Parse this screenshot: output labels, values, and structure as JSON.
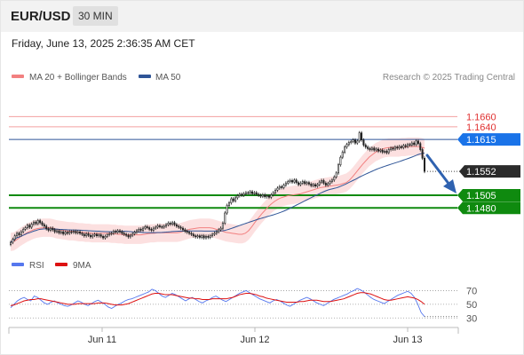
{
  "header": {
    "symbol": "EUR/USD",
    "timeframe": "30 MIN",
    "datetime": "Friday, June 13, 2025 2:36:35 AM CET"
  },
  "legend": {
    "ma20": "MA 20 + Bollinger Bands",
    "ma50": "MA 50",
    "rsi": "RSI",
    "rsi_ma": "9MA",
    "source": "Research © 2025 Trading Central"
  },
  "colors": {
    "ma20": "#f28080",
    "ma50": "#2f5597",
    "bands": "#fbdada",
    "resistance": "#f3a0a0",
    "pivot": "#2f5597",
    "support": "#0f8a0f",
    "current": "#2b2b2b",
    "pivot_label": "#1a73e8",
    "rsi": "#5577ee",
    "rsi_ma": "#dd1111",
    "arrow": "#2f62b0"
  },
  "chart_data": {
    "type": "candlestick",
    "x_ticks": [
      "Jun 11",
      "Jun 12",
      "Jun 13"
    ],
    "ylim": [
      1.14,
      1.1715
    ],
    "levels": {
      "resistance": [
        "1.1660",
        "1.1640"
      ],
      "pivot": "1.1615",
      "current": "1.1552",
      "support": [
        "1.1505",
        "1.1480"
      ]
    },
    "closes": [
      1.1412,
      1.1418,
      1.1425,
      1.143,
      1.1427,
      1.1433,
      1.1438,
      1.1441,
      1.1446,
      1.1442,
      1.1448,
      1.1452,
      1.1449,
      1.1455,
      1.1451,
      1.1447,
      1.1444,
      1.1439,
      1.1436,
      1.144,
      1.1437,
      1.1433,
      1.1435,
      1.1431,
      1.1433,
      1.1429,
      1.1432,
      1.143,
      1.1433,
      1.1432,
      1.1434,
      1.1431,
      1.1433,
      1.143,
      1.1428,
      1.1425,
      1.1429,
      1.1426,
      1.1423,
      1.1426,
      1.1428,
      1.1425,
      1.1427,
      1.1424,
      1.1421,
      1.1424,
      1.1427,
      1.1429,
      1.143,
      1.1434,
      1.1432,
      1.1435,
      1.1433,
      1.143,
      1.1428,
      1.1426,
      1.1423,
      1.1426,
      1.1429,
      1.1432,
      1.1435,
      1.1438,
      1.1436,
      1.144,
      1.1443,
      1.1441,
      1.1438,
      1.1436,
      1.144,
      1.1442,
      1.1445,
      1.1443,
      1.1442,
      1.1444,
      1.1447,
      1.145,
      1.1448,
      1.1451,
      1.1447,
      1.1444,
      1.1442,
      1.144,
      1.1437,
      1.1434,
      1.1432,
      1.143,
      1.1428,
      1.1425,
      1.1423,
      1.1425,
      1.1422,
      1.1425,
      1.1421,
      1.1424,
      1.1422,
      1.1425,
      1.1428,
      1.143,
      1.1433,
      1.1437,
      1.144,
      1.145,
      1.147,
      1.1485,
      1.149,
      1.1498,
      1.1494,
      1.15,
      1.1504,
      1.1507,
      1.1505,
      1.1508,
      1.151,
      1.1509,
      1.1512,
      1.1508,
      1.151,
      1.1507,
      1.1505,
      1.1503,
      1.1506,
      1.1502,
      1.1504,
      1.1501,
      1.1506,
      1.151,
      1.1515,
      1.1519,
      1.1522,
      1.152,
      1.1525,
      1.1529,
      1.1532,
      1.1534,
      1.1531,
      1.1535,
      1.153,
      1.1526,
      1.1529,
      1.1532,
      1.1528,
      1.153,
      1.1527,
      1.1524,
      1.1526,
      1.1523,
      1.1526,
      1.1531,
      1.1534,
      1.1529,
      1.1525,
      1.1528,
      1.1532,
      1.1535,
      1.1541,
      1.1549,
      1.1565,
      1.158,
      1.159,
      1.16,
      1.1605,
      1.1609,
      1.1611,
      1.1614,
      1.1608,
      1.1612,
      1.1628,
      1.1614,
      1.1604,
      1.16,
      1.1597,
      1.1595,
      1.1598,
      1.1594,
      1.1596,
      1.1592,
      1.1594,
      1.159,
      1.1592,
      1.1589,
      1.1595,
      1.1598,
      1.1596,
      1.16,
      1.1598,
      1.1601,
      1.1599,
      1.1603,
      1.1601,
      1.1605,
      1.1604,
      1.1608,
      1.1605,
      1.1612,
      1.1607,
      1.1595,
      1.1578,
      1.1552
    ],
    "ma20": [
      1.1413,
      1.1414,
      1.1418,
      1.1423,
      1.1427,
      1.1431,
      1.1434,
      1.1437,
      1.1439,
      1.144,
      1.1441,
      1.1441,
      1.1441,
      1.144,
      1.1438,
      1.1437,
      1.1436,
      1.1435,
      1.1434,
      1.1434,
      1.1433,
      1.1432,
      1.1432,
      1.1431,
      1.1431,
      1.143,
      1.143,
      1.143,
      1.143,
      1.143,
      1.143,
      1.1429,
      1.1429,
      1.1428,
      1.1428,
      1.1427,
      1.1427,
      1.1427,
      1.1427,
      1.1427,
      1.1427,
      1.1428,
      1.1429,
      1.143,
      1.143,
      1.1431,
      1.1431,
      1.1431,
      1.1431,
      1.1431,
      1.1431,
      1.1431,
      1.1432,
      1.1434,
      1.1436,
      1.1438,
      1.1439,
      1.144,
      1.1441,
      1.1441,
      1.1441,
      1.1441,
      1.144,
      1.1438,
      1.1436,
      1.1434,
      1.1432,
      1.1431,
      1.143,
      1.1429,
      1.1428,
      1.1428,
      1.143,
      1.1435,
      1.1443,
      1.1452,
      1.146,
      1.1468,
      1.1475,
      1.1482,
      1.1488,
      1.1493,
      1.1497,
      1.15,
      1.1502,
      1.1504,
      1.1505,
      1.1506,
      1.1507,
      1.1508,
      1.151,
      1.1512,
      1.1514,
      1.1516,
      1.1518,
      1.152,
      1.1521,
      1.1522,
      1.1523,
      1.1524,
      1.1525,
      1.1526,
      1.1528,
      1.153,
      1.1535,
      1.1542,
      1.155,
      1.1558,
      1.1566,
      1.1573,
      1.158,
      1.1585,
      1.159,
      1.1593,
      1.1596,
      1.1598,
      1.1599,
      1.1599,
      1.1599,
      1.1599,
      1.16,
      1.16,
      1.1601,
      1.1601,
      1.1601,
      1.1601,
      1.16,
      1.1598
    ]
  },
  "rsi_data": {
    "ticks": [
      "70",
      "50",
      "30"
    ],
    "rsi": [
      45,
      50,
      55,
      58,
      60,
      57,
      55,
      62,
      60,
      56,
      52,
      50,
      53,
      55,
      52,
      50,
      48,
      47,
      49,
      52,
      55,
      53,
      50,
      48,
      51,
      54,
      56,
      53,
      50,
      46,
      44,
      47,
      50,
      52,
      55,
      57,
      58,
      60,
      62,
      64,
      66,
      68,
      72,
      70,
      66,
      62,
      60,
      63,
      66,
      64,
      61,
      58,
      55,
      58,
      60,
      57,
      54,
      52,
      55,
      57,
      60,
      62,
      59,
      56,
      54,
      57,
      60,
      63,
      66,
      68,
      70,
      67,
      64,
      61,
      58,
      56,
      54,
      52,
      55,
      57,
      55,
      52,
      49,
      47,
      50,
      53,
      56,
      58,
      60,
      58,
      55,
      52,
      50,
      48,
      51,
      54,
      57,
      59,
      61,
      63,
      65,
      68,
      70,
      73,
      71,
      68,
      64,
      60,
      57,
      55,
      53,
      51,
      54,
      57,
      60,
      63,
      65,
      67,
      69,
      66,
      60,
      50,
      38,
      32
    ],
    "rsi_ma": [
      48,
      49,
      51,
      53,
      55,
      56,
      57,
      57,
      58,
      58,
      57,
      56,
      55,
      54,
      53,
      52,
      51,
      50,
      50,
      50,
      51,
      51,
      51,
      51,
      51,
      51,
      52,
      52,
      52,
      51,
      50,
      49,
      49,
      49,
      50,
      51,
      53,
      55,
      57,
      59,
      61,
      63,
      65,
      66,
      66,
      65,
      64,
      64,
      64,
      63,
      62,
      61,
      60,
      59,
      59,
      58,
      58,
      57,
      57,
      57,
      58,
      58,
      58,
      58,
      58,
      59,
      60,
      62,
      64,
      65,
      66,
      66,
      65,
      64,
      62,
      61,
      59,
      58,
      57,
      56,
      55,
      54,
      53,
      53,
      53,
      53,
      54,
      54,
      55,
      56,
      56,
      56,
      55,
      54,
      54,
      54,
      55,
      56,
      57,
      58,
      60,
      62,
      64,
      66,
      67,
      67,
      66,
      65,
      63,
      61,
      59,
      57,
      56,
      56,
      57,
      58,
      59,
      60,
      61,
      60,
      59,
      57,
      54,
      50
    ]
  }
}
